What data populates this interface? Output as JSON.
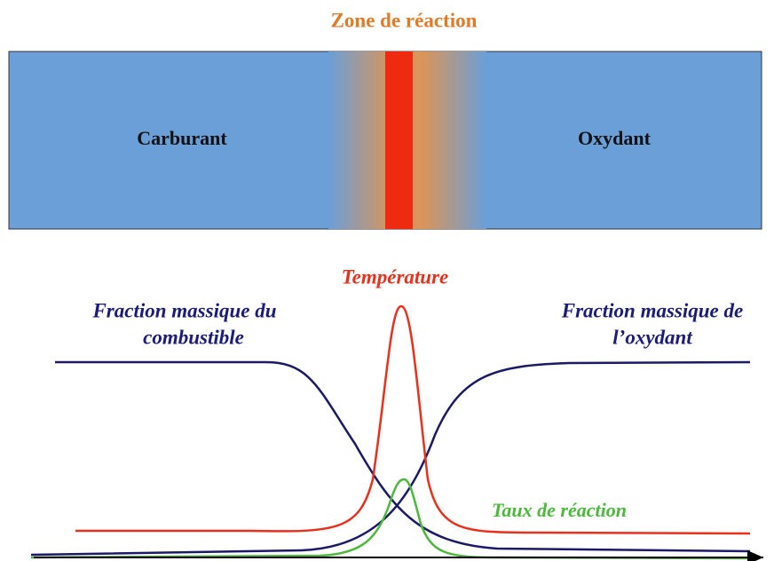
{
  "title": "Zone de réaction",
  "regions": {
    "left": "Carburant",
    "right": "Oxydant"
  },
  "curves": {
    "temperature": "Température",
    "fuel": [
      "Fraction massique du",
      "combustible"
    ],
    "oxidant": [
      "Fraction massique de",
      "l’oxydant"
    ],
    "reaction_rate": "Taux de réaction"
  }
}
